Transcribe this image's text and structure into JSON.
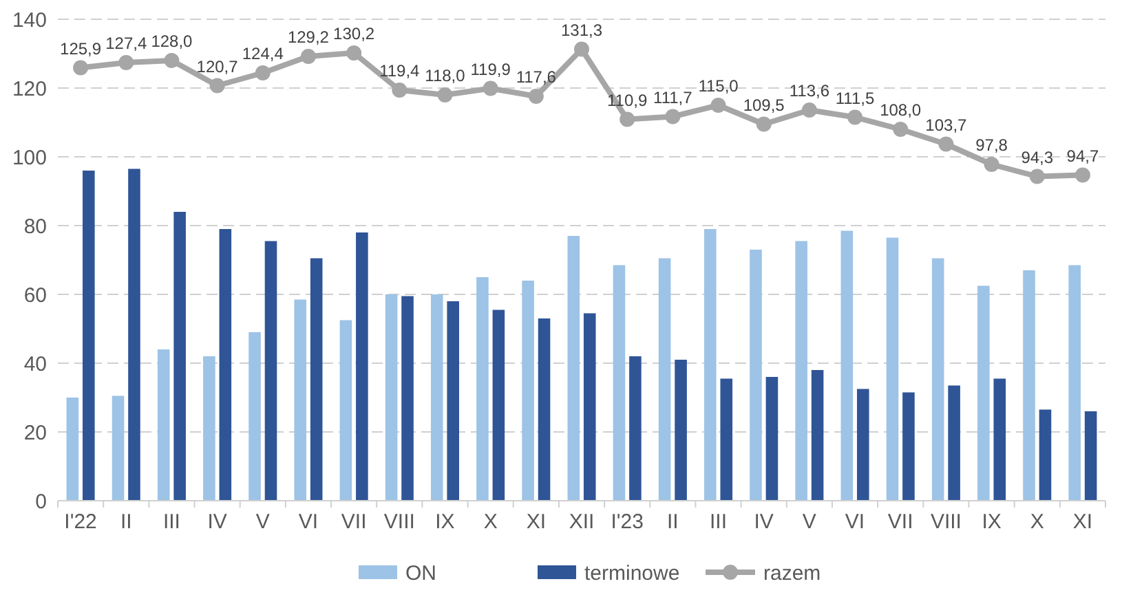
{
  "chart_data": {
    "type": "bar",
    "categories": [
      "I'22",
      "II",
      "III",
      "IV",
      "V",
      "VI",
      "VII",
      "VIII",
      "IX",
      "X",
      "XI",
      "XII",
      "I'23",
      "II",
      "III",
      "IV",
      "V",
      "VI",
      "VII",
      "VIII",
      "IX",
      "X",
      "XI"
    ],
    "series": [
      {
        "name": "ON",
        "color": "#9dc3e6",
        "values": [
          30,
          30.5,
          44,
          42,
          49,
          58.5,
          52.5,
          60,
          60,
          65,
          64,
          77,
          68.5,
          70.5,
          79,
          73,
          75.5,
          78.5,
          76.5,
          70.5,
          62.5,
          67,
          68.5
        ]
      },
      {
        "name": "terminowe",
        "color": "#2f5597",
        "values": [
          96,
          96.5,
          84,
          79,
          75.5,
          70.5,
          78,
          59.5,
          58,
          55.5,
          53,
          54.5,
          42,
          41,
          35.5,
          36,
          38,
          32.5,
          31.5,
          33.5,
          35.5,
          26.5,
          26
        ]
      },
      {
        "name": "razem",
        "type": "line",
        "color": "#a6a6a6",
        "marker": "circle",
        "values": [
          125.9,
          127.4,
          128.0,
          120.7,
          124.4,
          129.2,
          130.2,
          119.4,
          118.0,
          119.9,
          117.6,
          131.3,
          110.9,
          111.7,
          115.0,
          109.5,
          113.6,
          111.5,
          108.0,
          103.7,
          97.8,
          94.3,
          94.7
        ],
        "value_labels": [
          "125,9",
          "127,4",
          "128,0",
          "120,7",
          "124,4",
          "129,2",
          "130,2",
          "119,4",
          "118,0",
          "119,9",
          "117,6",
          "131,3",
          "110,9",
          "111,7",
          "115,0",
          "109,5",
          "113,6",
          "111,5",
          "108,0",
          "103,7",
          "97,8",
          "94,3",
          "94,7"
        ]
      }
    ],
    "ylim": [
      0,
      140
    ],
    "yticks": [
      0,
      20,
      40,
      60,
      80,
      100,
      120,
      140
    ],
    "grid": "y",
    "legend": "bottom"
  }
}
